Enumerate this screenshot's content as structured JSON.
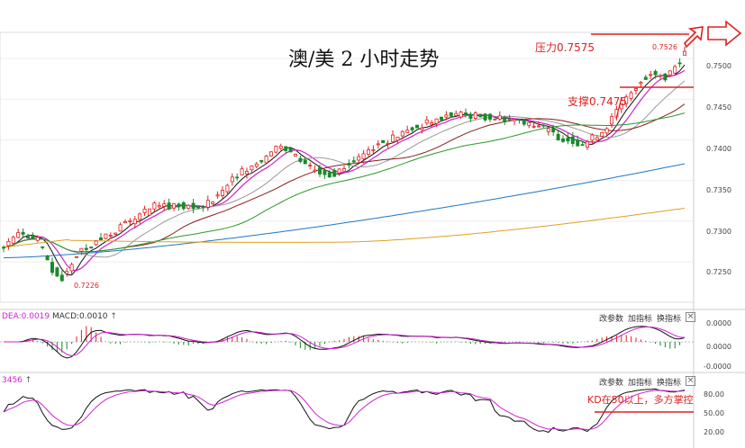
{
  "chart_data": {
    "type": "candlestick",
    "title": "澳/美 2 小时走势",
    "instrument": "澳/美",
    "y_ticks": [
      "0.7500",
      "0.7450",
      "0.7400",
      "0.7350",
      "0.7300",
      "0.7250"
    ],
    "y_range": [
      0.7207,
      0.753
    ],
    "annotations": {
      "resistance": "压力0.7575",
      "support": "支撑0.7475",
      "high": "0.7526",
      "low": "0.7226",
      "kd_note": "KD在50以上，多方掌控"
    },
    "macd_panel": {
      "header_dea": "DEA:0.0019",
      "header_macd": "MACD:0.0010",
      "y_ticks": [
        "0.0000",
        "0.0000",
        "-0.0000"
      ],
      "buttons": [
        "改参数",
        "加指标",
        "换指标"
      ]
    },
    "kd_panel": {
      "header": "3456",
      "y_ticks": [
        "80.00",
        "50.00",
        "20.00"
      ],
      "buttons": [
        "改参数",
        "加指标",
        "换指标"
      ]
    },
    "close_icon": "×",
    "arrow_icon": "↑",
    "colors": {
      "up": "#e02020",
      "down": "#1a8a2a",
      "annotation": "#e02020",
      "ma_black": "#111111",
      "ma_magenta": "#d020d0",
      "ma_gray": "#999999",
      "ma_darkred": "#8b1a1a",
      "ma_green": "#2a9a2a",
      "ma_blue": "#1f77c8",
      "ma_orange": "#e0a020"
    }
  }
}
